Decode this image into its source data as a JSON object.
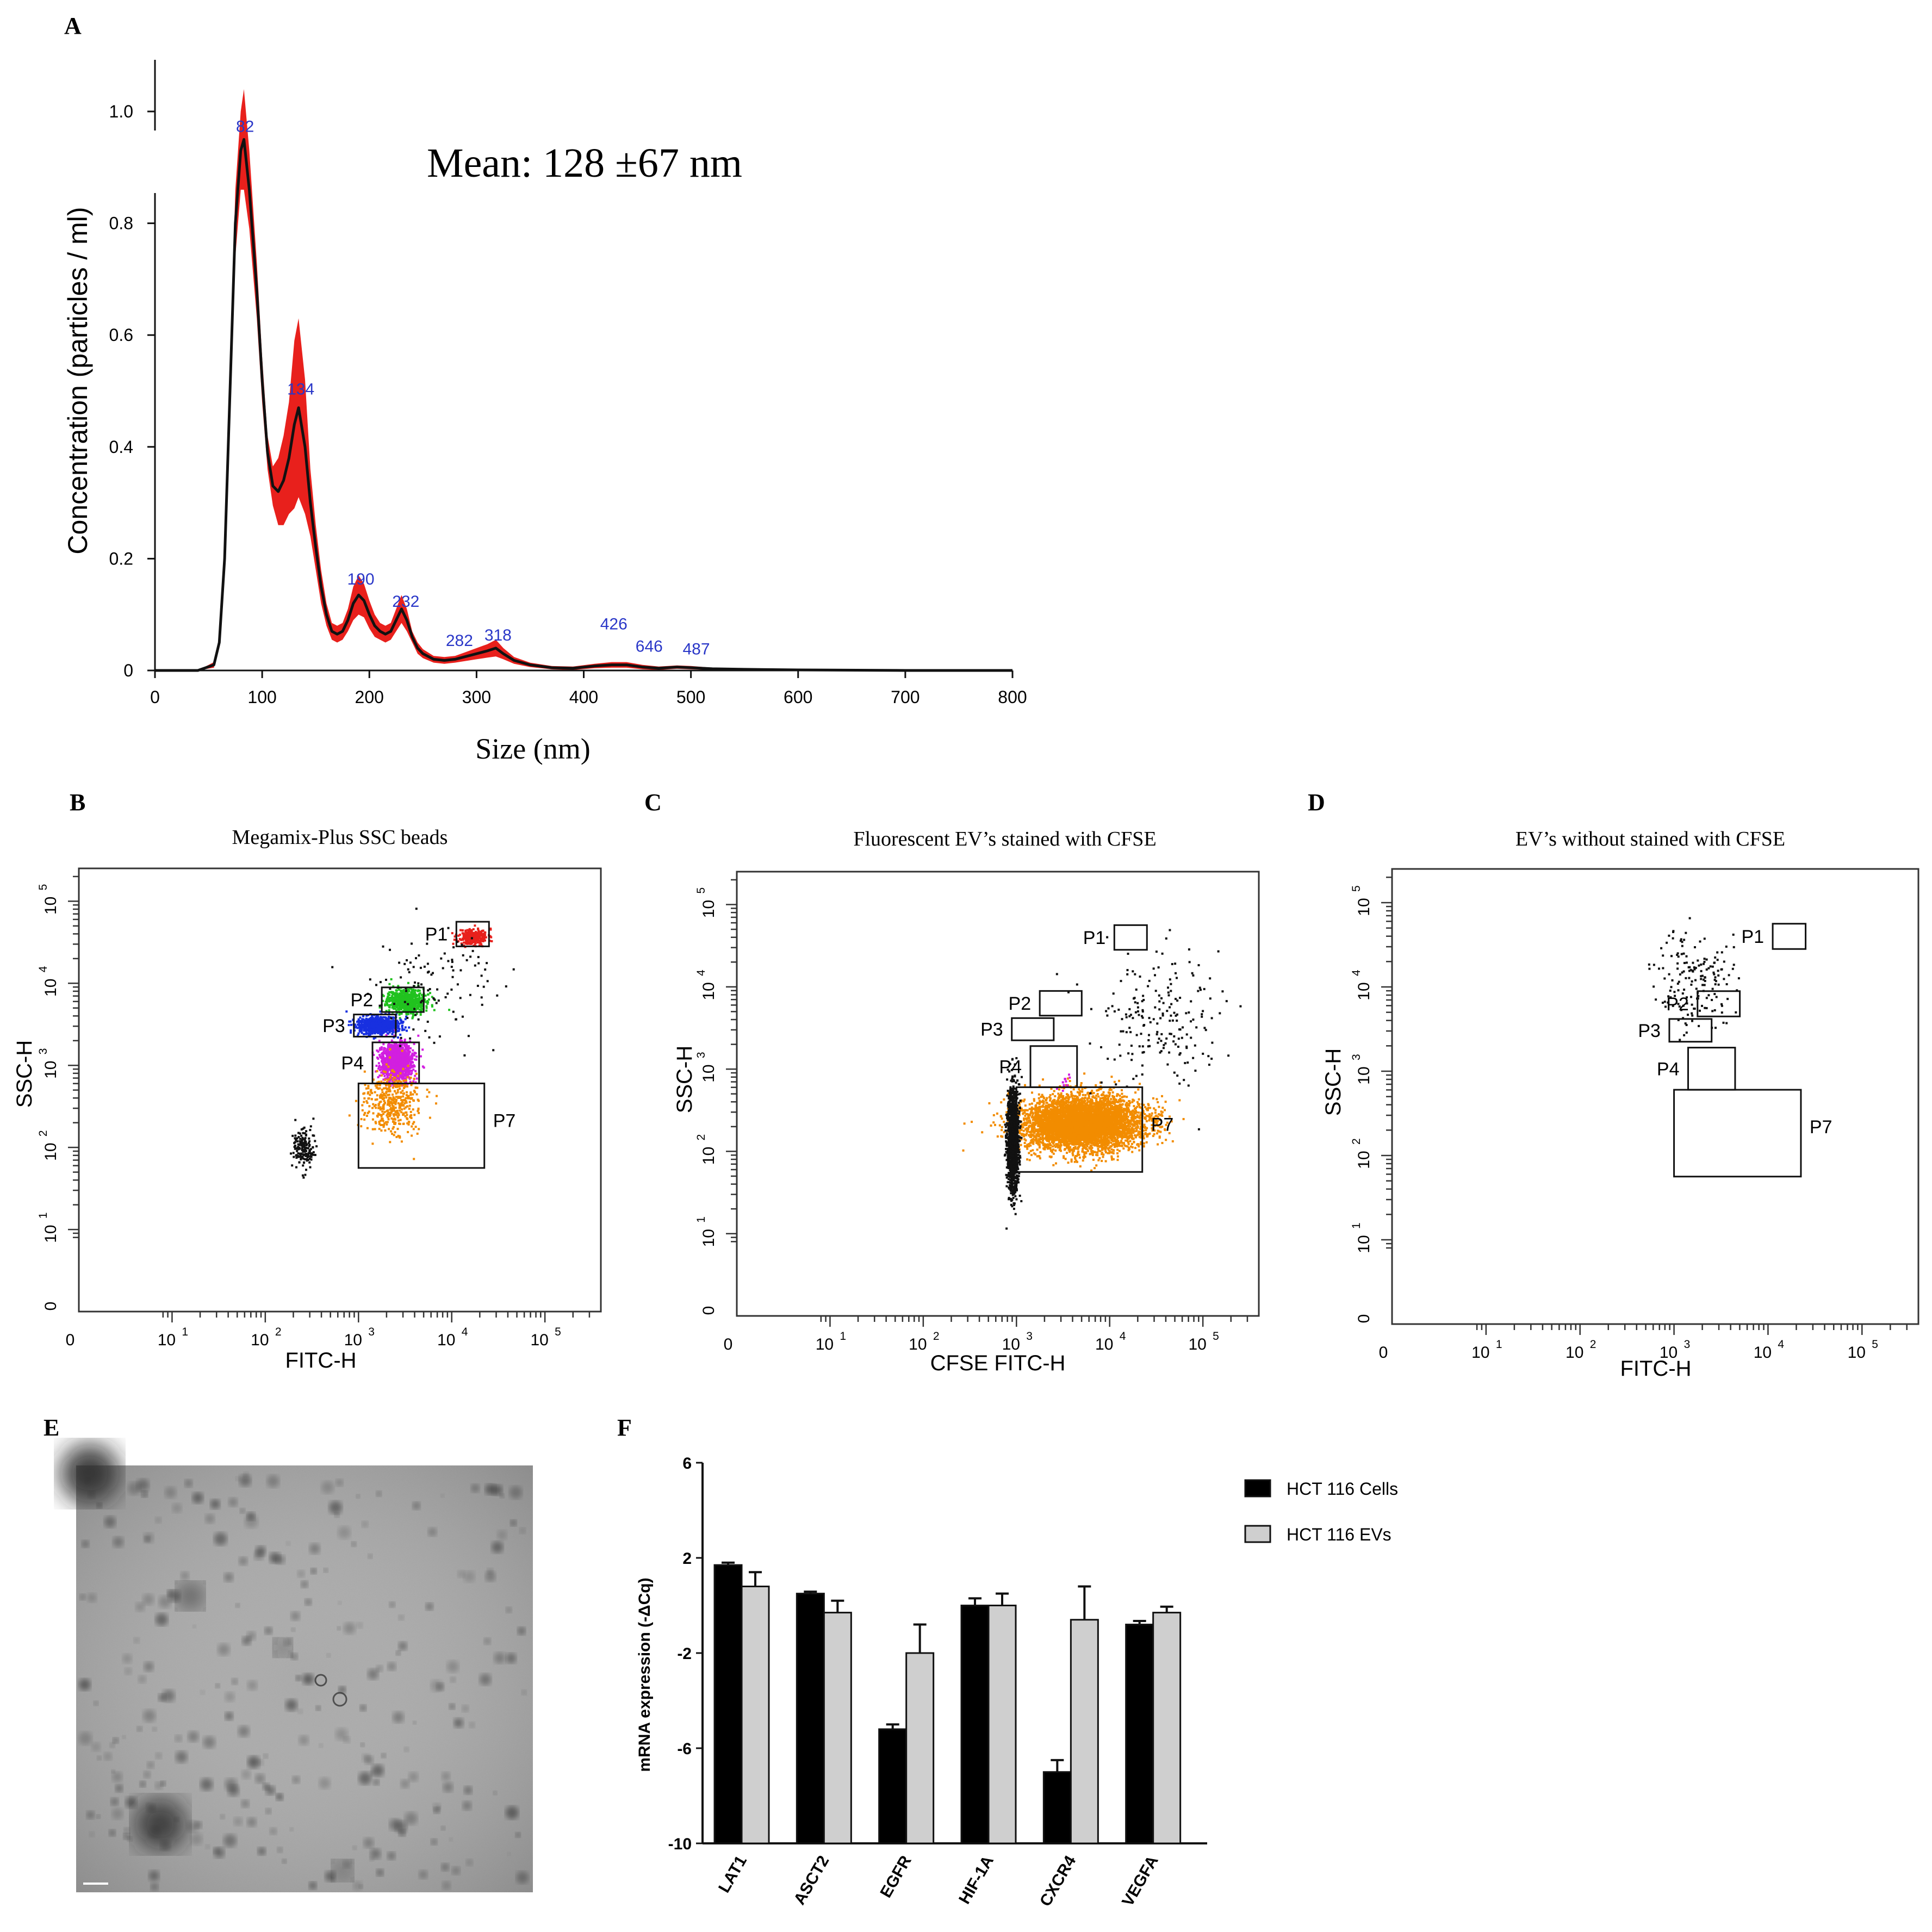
{
  "chart_data": [
    {
      "panel": "A",
      "type": "line",
      "title": "",
      "annotation": "Mean: 128 ±67 nm",
      "xlabel": "Size (nm)",
      "ylabel": "Concentration (particles / ml)",
      "xlim": [
        0,
        800
      ],
      "ylim": [
        0,
        1.0
      ],
      "xticks": [
        "0",
        "100",
        "200",
        "300",
        "400",
        "500",
        "600",
        "700",
        "800"
      ],
      "yticks": [
        "0",
        "0.2",
        "0.4",
        "0.6",
        "0.8",
        "1.0"
      ],
      "grid": false,
      "curve": {
        "x": [
          0,
          40,
          55,
          60,
          65,
          70,
          75,
          80,
          83,
          88,
          95,
          100,
          105,
          110,
          115,
          120,
          125,
          130,
          134,
          140,
          145,
          150,
          155,
          160,
          165,
          170,
          175,
          180,
          185,
          190,
          195,
          200,
          205,
          210,
          215,
          220,
          225,
          230,
          235,
          240,
          245,
          250,
          260,
          270,
          280,
          290,
          300,
          310,
          318,
          325,
          335,
          350,
          370,
          390,
          410,
          426,
          440,
          455,
          470,
          487,
          500,
          520,
          550,
          600,
          700,
          800
        ],
        "y": [
          0,
          0,
          0.01,
          0.05,
          0.2,
          0.5,
          0.8,
          0.93,
          0.95,
          0.86,
          0.68,
          0.52,
          0.39,
          0.33,
          0.32,
          0.34,
          0.38,
          0.44,
          0.47,
          0.4,
          0.3,
          0.22,
          0.15,
          0.1,
          0.07,
          0.065,
          0.07,
          0.09,
          0.12,
          0.135,
          0.125,
          0.1,
          0.08,
          0.07,
          0.065,
          0.07,
          0.09,
          0.11,
          0.09,
          0.06,
          0.04,
          0.03,
          0.02,
          0.018,
          0.02,
          0.025,
          0.03,
          0.035,
          0.04,
          0.03,
          0.018,
          0.01,
          0.005,
          0.004,
          0.008,
          0.01,
          0.01,
          0.006,
          0.004,
          0.006,
          0.005,
          0.003,
          0.002,
          0.001,
          0,
          0
        ]
      },
      "band_halfwidth": [
        0,
        0,
        0.005,
        0.01,
        0.03,
        0.05,
        0.06,
        0.07,
        0.09,
        0.07,
        0.05,
        0.04,
        0.03,
        0.035,
        0.06,
        0.08,
        0.1,
        0.15,
        0.16,
        0.12,
        0.06,
        0.04,
        0.03,
        0.02,
        0.015,
        0.015,
        0.015,
        0.02,
        0.03,
        0.035,
        0.03,
        0.025,
        0.02,
        0.015,
        0.015,
        0.015,
        0.02,
        0.025,
        0.02,
        0.01,
        0.01,
        0.008,
        0.006,
        0.006,
        0.006,
        0.008,
        0.01,
        0.012,
        0.015,
        0.01,
        0.006,
        0.004,
        0.003,
        0.003,
        0.004,
        0.005,
        0.005,
        0.004,
        0.003,
        0.003,
        0.003,
        0.002,
        0.002,
        0.001,
        0.001,
        0.001
      ],
      "peaks": [
        {
          "label": "82",
          "x": 82,
          "y": 0.95
        },
        {
          "label": "134",
          "x": 134,
          "y": 0.48
        },
        {
          "label": "190",
          "x": 190,
          "y": 0.14
        },
        {
          "label": "232",
          "x": 232,
          "y": 0.1
        },
        {
          "label": "282",
          "x": 282,
          "y": 0.03
        },
        {
          "label": "318",
          "x": 318,
          "y": 0.04
        },
        {
          "label": "426",
          "x": 426,
          "y": 0.06
        },
        {
          "label": "646",
          "x": 459,
          "y": 0.02
        },
        {
          "label": "487",
          "x": 503,
          "y": 0.015
        }
      ],
      "colors": {
        "line": "#111111",
        "band": "#e8201c",
        "peak_label": "#2a37c8"
      }
    },
    {
      "panel": "B",
      "type": "scatter",
      "title": "Megamix-Plus SSC beads",
      "xlabel": "FITC-H",
      "ylabel": "SSC-H",
      "scale": "log",
      "xlim": [
        0,
        5.6
      ],
      "ylim": [
        0,
        5.4
      ],
      "xticks": [
        {
          "label": "10",
          "exp": "1",
          "v": 1
        },
        {
          "label": "10",
          "exp": "2",
          "v": 2
        },
        {
          "label": "10",
          "exp": "3",
          "v": 3
        },
        {
          "label": "10",
          "exp": "4",
          "v": 4
        },
        {
          "label": "10",
          "exp": "5",
          "v": 5
        }
      ],
      "yticks": [
        {
          "label": "10",
          "exp": "1",
          "v": 1
        },
        {
          "label": "10",
          "exp": "2",
          "v": 2
        },
        {
          "label": "10",
          "exp": "3",
          "v": 3
        },
        {
          "label": "10",
          "exp": "4",
          "v": 4
        },
        {
          "label": "10",
          "exp": "5",
          "v": 5
        }
      ],
      "zero_label": "0",
      "gates": [
        {
          "name": "P1",
          "x0": 4.05,
          "x1": 4.4,
          "y0": 4.45,
          "y1": 4.75
        },
        {
          "name": "P2",
          "x0": 3.25,
          "x1": 3.7,
          "y0": 3.65,
          "y1": 3.95
        },
        {
          "name": "P3",
          "x0": 2.95,
          "x1": 3.4,
          "y0": 3.35,
          "y1": 3.62
        },
        {
          "name": "P4",
          "x0": 3.15,
          "x1": 3.65,
          "y0": 2.78,
          "y1": 3.28
        },
        {
          "name": "P7",
          "x0": 3.0,
          "x1": 4.35,
          "y0": 1.75,
          "y1": 2.78
        }
      ],
      "populations": [
        {
          "gate": "P1",
          "color": "#e8201c",
          "cx": 4.22,
          "cy": 4.58,
          "sx": 0.08,
          "sy": 0.05,
          "n": 260
        },
        {
          "gate": "P2",
          "color": "#21c21f",
          "cx": 3.5,
          "cy": 3.8,
          "sx": 0.1,
          "sy": 0.07,
          "n": 700
        },
        {
          "gate": "P3",
          "color": "#1830e0",
          "cx": 3.2,
          "cy": 3.5,
          "sx": 0.11,
          "sy": 0.05,
          "n": 900
        },
        {
          "gate": "P4",
          "color": "#d21fe0",
          "cx": 3.4,
          "cy": 3.06,
          "sx": 0.08,
          "sy": 0.11,
          "n": 1300
        },
        {
          "gate": "P7",
          "color": "#f28c00",
          "cx": 3.35,
          "cy": 2.55,
          "sx": 0.15,
          "sy": 0.2,
          "n": 420
        },
        {
          "gate": "",
          "color": "#111111",
          "cx": 2.4,
          "cy": 2.0,
          "sx": 0.06,
          "sy": 0.12,
          "n": 160
        },
        {
          "gate": "",
          "color": "#111111",
          "cx": 3.8,
          "cy": 4.0,
          "sx": 0.35,
          "sy": 0.35,
          "n": 110
        }
      ]
    },
    {
      "panel": "C",
      "type": "scatter",
      "title": "Fluorescent EV’s stained with CFSE",
      "xlabel": "CFSE FITC-H",
      "ylabel": "SSC-H",
      "scale": "log",
      "xlim": [
        0,
        5.6
      ],
      "ylim": [
        0,
        5.4
      ],
      "xticks": [
        {
          "label": "10",
          "exp": "1",
          "v": 1
        },
        {
          "label": "10",
          "exp": "2",
          "v": 2
        },
        {
          "label": "10",
          "exp": "3",
          "v": 3
        },
        {
          "label": "10",
          "exp": "4",
          "v": 4
        },
        {
          "label": "10",
          "exp": "5",
          "v": 5
        }
      ],
      "yticks": [
        {
          "label": "10",
          "exp": "1",
          "v": 1
        },
        {
          "label": "10",
          "exp": "2",
          "v": 2
        },
        {
          "label": "10",
          "exp": "3",
          "v": 3
        },
        {
          "label": "10",
          "exp": "4",
          "v": 4
        },
        {
          "label": "10",
          "exp": "5",
          "v": 5
        }
      ],
      "zero_label": "0",
      "gates": [
        {
          "name": "P1",
          "x0": 4.05,
          "x1": 4.4,
          "y0": 4.45,
          "y1": 4.75
        },
        {
          "name": "P2",
          "x0": 3.25,
          "x1": 3.7,
          "y0": 3.65,
          "y1": 3.95
        },
        {
          "name": "P3",
          "x0": 2.95,
          "x1": 3.4,
          "y0": 3.35,
          "y1": 3.62
        },
        {
          "name": "P4",
          "x0": 3.15,
          "x1": 3.65,
          "y0": 2.78,
          "y1": 3.28
        },
        {
          "name": "P7",
          "x0": 3.0,
          "x1": 4.35,
          "y0": 1.75,
          "y1": 2.78
        }
      ],
      "populations": [
        {
          "gate": "P7",
          "color": "#f28c00",
          "cx": 3.7,
          "cy": 2.35,
          "sx": 0.32,
          "sy": 0.16,
          "n": 5200
        },
        {
          "gate": "",
          "color": "#111111",
          "cx": 2.95,
          "cy": 2.15,
          "sx": 0.03,
          "sy": 0.32,
          "n": 1500
        },
        {
          "gate": "",
          "color": "#111111",
          "cx": 4.5,
          "cy": 3.6,
          "sx": 0.35,
          "sy": 0.4,
          "n": 200
        },
        {
          "gate": "P4",
          "color": "#d21fe0",
          "cx": 3.5,
          "cy": 2.85,
          "sx": 0.06,
          "sy": 0.05,
          "n": 12
        }
      ]
    },
    {
      "panel": "D",
      "type": "scatter",
      "title": "EV’s without stained with CFSE",
      "xlabel": "FITC-H",
      "ylabel": "SSC-H",
      "scale": "log",
      "xlim": [
        0,
        5.6
      ],
      "ylim": [
        0,
        5.4
      ],
      "xticks": [
        {
          "label": "10",
          "exp": "1",
          "v": 1
        },
        {
          "label": "10",
          "exp": "2",
          "v": 2
        },
        {
          "label": "10",
          "exp": "3",
          "v": 3
        },
        {
          "label": "10",
          "exp": "4",
          "v": 4
        },
        {
          "label": "10",
          "exp": "5",
          "v": 5
        }
      ],
      "yticks": [
        {
          "label": "10",
          "exp": "1",
          "v": 1
        },
        {
          "label": "10",
          "exp": "2",
          "v": 2
        },
        {
          "label": "10",
          "exp": "3",
          "v": 3
        },
        {
          "label": "10",
          "exp": "4",
          "v": 4
        },
        {
          "label": "10",
          "exp": "5",
          "v": 5
        }
      ],
      "zero_label": "0",
      "gates": [
        {
          "name": "P1",
          "x0": 4.05,
          "x1": 4.4,
          "y0": 4.45,
          "y1": 4.75
        },
        {
          "name": "P2",
          "x0": 3.25,
          "x1": 3.7,
          "y0": 3.65,
          "y1": 3.95
        },
        {
          "name": "P3",
          "x0": 2.95,
          "x1": 3.4,
          "y0": 3.35,
          "y1": 3.62
        },
        {
          "name": "P4",
          "x0": 3.15,
          "x1": 3.65,
          "y0": 2.78,
          "y1": 3.28
        },
        {
          "name": "P7",
          "x0": 3.0,
          "x1": 4.35,
          "y0": 1.75,
          "y1": 2.78
        }
      ],
      "populations": [
        {
          "gate": "",
          "color": "#111111",
          "cx": 3.2,
          "cy": 4.1,
          "sx": 0.2,
          "sy": 0.3,
          "n": 170
        }
      ]
    },
    {
      "panel": "F",
      "type": "bar",
      "title": "",
      "xlabel": "",
      "ylabel": "mRNA expression (-ΔCq)",
      "ylim": [
        -10,
        6
      ],
      "yticks": [
        "6",
        "2",
        "-2",
        "-6",
        "-10"
      ],
      "categories": [
        "LAT1",
        "ASCT2",
        "EGFR",
        "HIF-1A",
        "CXCR4",
        "VEGFA"
      ],
      "series": [
        {
          "name": "HCT 116 Cells",
          "values": [
            1.7,
            0.5,
            -5.2,
            0.0,
            -7.0,
            -0.8
          ],
          "errors": [
            0.1,
            0.08,
            0.2,
            0.3,
            0.5,
            0.15
          ],
          "color": "#000000"
        },
        {
          "name": "HCT 116 EVs",
          "values": [
            0.8,
            -0.3,
            -2.0,
            0.0,
            -0.6,
            -0.3
          ],
          "errors": [
            0.6,
            0.5,
            1.2,
            0.5,
            1.4,
            0.25
          ],
          "color": "#cfcfcf"
        }
      ],
      "legend": "top-right"
    }
  ],
  "panel_labels": [
    "A",
    "B",
    "C",
    "D",
    "E",
    "F"
  ],
  "panel_E": {
    "type": "micrograph",
    "description_name": "electron-micrograph"
  }
}
